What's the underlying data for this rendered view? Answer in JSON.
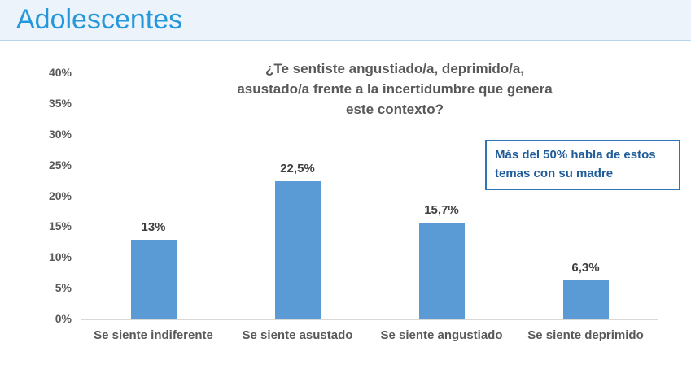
{
  "header": {
    "title": "Adolescentes"
  },
  "chart_data": {
    "type": "bar",
    "title": "¿Te sentiste angustiado/a, deprimido/a, asustado/a frente a la incertidumbre que genera este contexto?",
    "title_lines": [
      "¿Te sentiste angustiado/a, deprimido/a,",
      "asustado/a frente a la incertidumbre que genera",
      "este contexto?"
    ],
    "categories": [
      "Se siente indiferente",
      "Se siente asustado",
      "Se siente angustiado",
      "Se siente deprimido"
    ],
    "values": [
      13,
      22.5,
      15.7,
      6.3
    ],
    "value_labels": [
      "13%",
      "22,5%",
      "15,7%",
      "6,3%"
    ],
    "xlabel": "",
    "ylabel": "",
    "ylim": [
      0,
      40
    ],
    "ytick_labels": [
      "0%",
      "5%",
      "10%",
      "15%",
      "20%",
      "25%",
      "30%",
      "35%",
      "40%"
    ],
    "grid": false,
    "legend": null,
    "annotation": "Más del 50% habla de estos temas con su madre",
    "annotation_lines": [
      "Más del 50% habla de estos",
      "temas con su madre"
    ]
  },
  "colors": {
    "header_bg": "#edf3fa",
    "header_border": "#b5d5ee",
    "header_text": "#2598dc",
    "chart_title_text": "#595959",
    "bar": "#5b9bd5",
    "value_label_text": "#404040",
    "axis_text": "#595959",
    "axis_line": "#d9d9d9",
    "annotation_border": "#2e75b6",
    "annotation_text": "#1f5c99"
  }
}
